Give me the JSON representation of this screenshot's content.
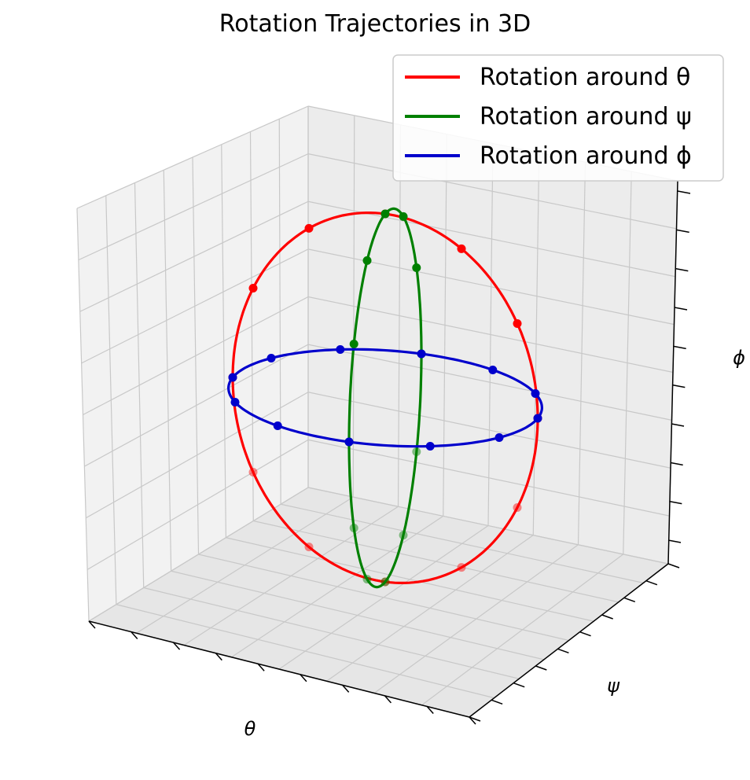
{
  "chart_data": {
    "type": "line",
    "projection": "3d",
    "title": "Rotation Trajectories in 3D",
    "xlabel": "θ",
    "ylabel": "ψ",
    "zlabel": "ϕ",
    "tick_labels_shown": false,
    "grid": true,
    "legend_position": "top-right",
    "series": [
      {
        "name": "Rotation around θ",
        "color": "#ff0000",
        "plane": "theta-phi",
        "radius": 1,
        "markers_count": 12
      },
      {
        "name": "Rotation around ψ",
        "color": "#008000",
        "plane": "psi-phi",
        "radius": 1,
        "markers_count": 12
      },
      {
        "name": "Rotation around ϕ",
        "color": "#0000cc",
        "plane": "theta-psi",
        "radius": 1,
        "markers_count": 12
      }
    ]
  }
}
